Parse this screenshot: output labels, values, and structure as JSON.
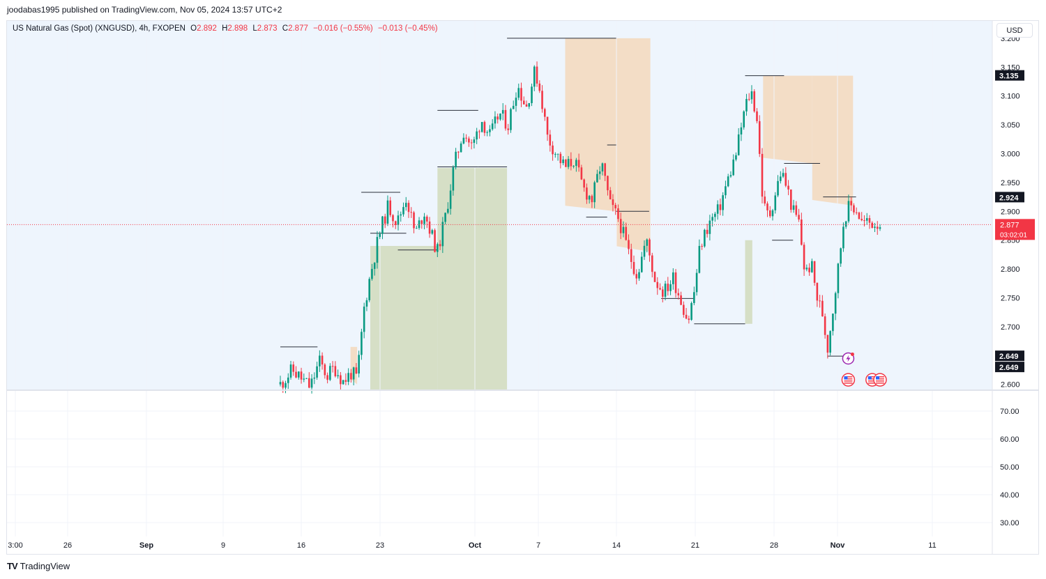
{
  "publish_line": "joodabas1995 published on TradingView.com, Nov 05, 2024 13:57 UTC+2",
  "legend": {
    "symbol": "US Natural Gas (Spot) (XNGUSD), 4h, FXOPEN",
    "o_label": "O",
    "o_value": "2.892",
    "h_label": "H",
    "h_value": "2.898",
    "l_label": "L",
    "l_value": "2.873",
    "c_label": "C",
    "c_value": "2.877",
    "change": "−0.016 (−0.55%)",
    "change2": "−0.013 (−0.45%)"
  },
  "currency": "USD",
  "brand": {
    "icon": "TV",
    "name": "TradingView"
  },
  "colors": {
    "up": "#089981",
    "down": "#f23645",
    "bg_main": "#eef5fd",
    "supply_zone": "#f3ddc6",
    "demand_zone": "#d6dfc6",
    "level_line": "#2a2e39",
    "current_price": "#f23645"
  },
  "chart_data": {
    "type": "candlestick",
    "timeframe": "4h",
    "x_tick_labels": [
      "3:00",
      "26",
      "Sep",
      "9",
      "16",
      "23",
      "Oct",
      "7",
      "14",
      "21",
      "28",
      "Nov",
      "11"
    ],
    "bold_x_ticks": [
      "Sep",
      "Oct",
      "Nov"
    ],
    "y_ticks": [
      "2.600",
      "2.650",
      "2.700",
      "2.750",
      "2.800",
      "2.850",
      "2.900",
      "2.950",
      "3.000",
      "3.050",
      "3.100",
      "3.150",
      "3.200"
    ],
    "ylim": [
      2.59,
      3.23
    ],
    "lower_pane_y_ticks": [
      "30.00",
      "40.00",
      "50.00",
      "60.00",
      "70.00"
    ],
    "lower_pane_ylim": [
      25,
      75
    ],
    "price_labels": [
      {
        "text": "3.135",
        "value": 3.135,
        "style": "dark"
      },
      {
        "text": "2.924",
        "value": 2.924,
        "style": "dark"
      },
      {
        "text": "2.877",
        "value": 2.877,
        "style": "current",
        "timer": "03:02:01"
      },
      {
        "text": "2.649",
        "value": 2.649,
        "style": "dark"
      },
      {
        "text": "2.649",
        "value": 2.649,
        "style": "dark"
      }
    ],
    "current_price": 2.877,
    "segments": [
      {
        "t": 0.0,
        "price": 2.6
      },
      {
        "t": 0.02,
        "price": 2.625
      },
      {
        "t": 0.035,
        "price": 2.61
      },
      {
        "t": 0.05,
        "price": 2.595
      },
      {
        "t": 0.065,
        "price": 2.64
      },
      {
        "t": 0.078,
        "price": 2.615
      },
      {
        "t": 0.09,
        "price": 2.63
      },
      {
        "t": 0.105,
        "price": 2.605
      },
      {
        "t": 0.118,
        "price": 2.62
      },
      {
        "t": 0.128,
        "price": 2.61
      },
      {
        "t": 0.14,
        "price": 2.735
      },
      {
        "t": 0.15,
        "price": 2.79
      },
      {
        "t": 0.165,
        "price": 2.86
      },
      {
        "t": 0.18,
        "price": 2.91
      },
      {
        "t": 0.195,
        "price": 2.88
      },
      {
        "t": 0.21,
        "price": 2.925
      },
      {
        "t": 0.225,
        "price": 2.86
      },
      {
        "t": 0.24,
        "price": 2.9
      },
      {
        "t": 0.255,
        "price": 2.85
      },
      {
        "t": 0.262,
        "price": 2.83
      },
      {
        "t": 0.275,
        "price": 2.89
      },
      {
        "t": 0.29,
        "price": 2.98
      },
      {
        "t": 0.305,
        "price": 3.04
      },
      {
        "t": 0.32,
        "price": 3.01
      },
      {
        "t": 0.335,
        "price": 3.06
      },
      {
        "t": 0.35,
        "price": 3.03
      },
      {
        "t": 0.365,
        "price": 3.07
      },
      {
        "t": 0.38,
        "price": 3.05
      },
      {
        "t": 0.395,
        "price": 3.12
      },
      {
        "t": 0.41,
        "price": 3.08
      },
      {
        "t": 0.425,
        "price": 3.145
      },
      {
        "t": 0.435,
        "price": 3.1
      },
      {
        "t": 0.445,
        "price": 3.03
      },
      {
        "t": 0.46,
        "price": 3.0
      },
      {
        "t": 0.475,
        "price": 2.975
      },
      {
        "t": 0.49,
        "price": 2.99
      },
      {
        "t": 0.505,
        "price": 2.94
      },
      {
        "t": 0.52,
        "price": 2.92
      },
      {
        "t": 0.535,
        "price": 2.985
      },
      {
        "t": 0.55,
        "price": 2.91
      },
      {
        "t": 0.565,
        "price": 2.885
      },
      {
        "t": 0.58,
        "price": 2.83
      },
      {
        "t": 0.595,
        "price": 2.79
      },
      {
        "t": 0.61,
        "price": 2.85
      },
      {
        "t": 0.625,
        "price": 2.78
      },
      {
        "t": 0.64,
        "price": 2.76
      },
      {
        "t": 0.655,
        "price": 2.785
      },
      {
        "t": 0.67,
        "price": 2.74
      },
      {
        "t": 0.68,
        "price": 2.71
      },
      {
        "t": 0.69,
        "price": 2.76
      },
      {
        "t": 0.7,
        "price": 2.84
      },
      {
        "t": 0.715,
        "price": 2.88
      },
      {
        "t": 0.73,
        "price": 2.9
      },
      {
        "t": 0.745,
        "price": 2.95
      },
      {
        "t": 0.76,
        "price": 3.0
      },
      {
        "t": 0.775,
        "price": 3.08
      },
      {
        "t": 0.785,
        "price": 3.11
      },
      {
        "t": 0.795,
        "price": 3.06
      },
      {
        "t": 0.805,
        "price": 2.91
      },
      {
        "t": 0.815,
        "price": 2.89
      },
      {
        "t": 0.825,
        "price": 2.93
      },
      {
        "t": 0.835,
        "price": 2.97
      },
      {
        "t": 0.845,
        "price": 2.94
      },
      {
        "t": 0.855,
        "price": 2.9
      },
      {
        "t": 0.865,
        "price": 2.88
      },
      {
        "t": 0.875,
        "price": 2.79
      },
      {
        "t": 0.885,
        "price": 2.81
      },
      {
        "t": 0.895,
        "price": 2.75
      },
      {
        "t": 0.905,
        "price": 2.72
      },
      {
        "t": 0.912,
        "price": 2.66
      },
      {
        "t": 0.92,
        "price": 2.72
      },
      {
        "t": 0.93,
        "price": 2.8
      },
      {
        "t": 0.94,
        "price": 2.89
      },
      {
        "t": 0.95,
        "price": 2.91
      },
      {
        "t": 0.96,
        "price": 2.905
      },
      {
        "t": 0.97,
        "price": 2.88
      }
    ],
    "levels": [
      {
        "x0": 0.0,
        "x1": 0.062,
        "price": 2.665
      },
      {
        "x0": 0.135,
        "x1": 0.2,
        "price": 2.933
      },
      {
        "x0": 0.15,
        "x1": 0.21,
        "price": 2.862
      },
      {
        "x0": 0.196,
        "x1": 0.262,
        "price": 2.833
      },
      {
        "x0": 0.262,
        "x1": 0.33,
        "price": 2.977
      },
      {
        "x0": 0.262,
        "x1": 0.33,
        "price": 3.075
      },
      {
        "x0": 0.33,
        "x1": 0.378,
        "price": 2.977
      },
      {
        "x0": 0.378,
        "x1": 0.45,
        "price": 3.2
      },
      {
        "x0": 0.45,
        "x1": 0.56,
        "price": 3.2
      },
      {
        "x0": 0.51,
        "x1": 0.545,
        "price": 2.89
      },
      {
        "x0": 0.545,
        "x1": 0.56,
        "price": 3.015
      },
      {
        "x0": 0.56,
        "x1": 0.615,
        "price": 2.9
      },
      {
        "x0": 0.635,
        "x1": 0.69,
        "price": 2.749
      },
      {
        "x0": 0.69,
        "x1": 0.775,
        "price": 2.705
      },
      {
        "x0": 0.775,
        "x1": 0.84,
        "price": 3.135
      },
      {
        "x0": 0.82,
        "x1": 0.855,
        "price": 2.85
      },
      {
        "x0": 0.84,
        "x1": 0.9,
        "price": 2.983
      },
      {
        "x0": 0.905,
        "x1": 0.96,
        "price": 2.925
      },
      {
        "x0": 0.912,
        "x1": 0.94,
        "price": 2.649
      }
    ],
    "zones": [
      {
        "kind": "supply",
        "x0": 0.117,
        "x1": 0.128,
        "top": 2.665,
        "bottom": 2.6
      },
      {
        "kind": "demand",
        "x0": 0.15,
        "x1": 0.262,
        "top": 2.84,
        "bottom": 2.59
      },
      {
        "kind": "demand",
        "x0": 0.262,
        "x1": 0.378,
        "top": 2.975,
        "bottom": 2.59
      },
      {
        "kind": "supply",
        "x0": 0.475,
        "x1": 0.56,
        "top": 3.2,
        "bottom": 2.9
      },
      {
        "kind": "supply",
        "x0": 0.56,
        "x1": 0.617,
        "top": 3.2,
        "bottom": 2.83
      },
      {
        "kind": "demand",
        "x0": 0.775,
        "x1": 0.787,
        "top": 2.85,
        "bottom": 2.705
      },
      {
        "kind": "supply",
        "x0": 0.805,
        "x1": 0.887,
        "top": 3.135,
        "bottom": 2.983
      },
      {
        "kind": "supply",
        "x0": 0.887,
        "x1": 0.955,
        "top": 3.135,
        "bottom": 2.91
      }
    ],
    "events": [
      {
        "kind": "flash",
        "t": 0.947,
        "price": 2.645
      },
      {
        "kind": "us-flag",
        "t": 0.947,
        "price": 2.608
      },
      {
        "kind": "us-flag",
        "t": 0.987,
        "price": 2.608
      },
      {
        "kind": "us-flag",
        "t": 1.0,
        "price": 2.608
      }
    ]
  }
}
